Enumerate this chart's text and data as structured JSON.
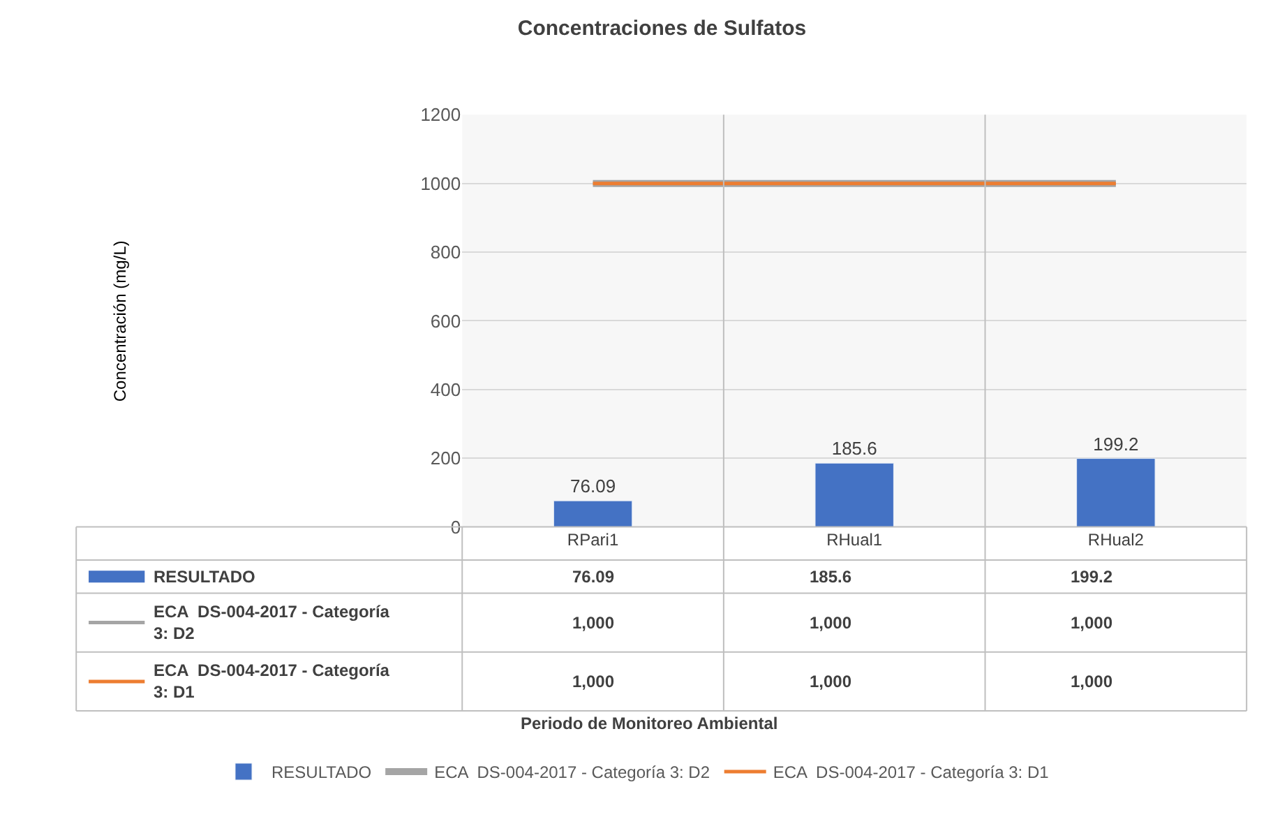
{
  "chart_data": {
    "type": "bar",
    "title": "Concentraciones de Sulfatos",
    "annotations": [
      "Periodo de Monitoreo Ambiental",
      "Concentración (mg/L)"
    ],
    "categories": [
      "RPari1",
      "RHual1",
      "RHual2"
    ],
    "series": [
      {
        "name": "RESULTADO",
        "color": "#4472c4",
        "values": [
          76.09,
          185.6,
          199.2
        ],
        "value_labels": [
          "76.09",
          "185.6",
          "199.2"
        ]
      },
      {
        "name": "ECA  DS-004-2017 - Categoría 3: D2",
        "type": "line",
        "color": "#a5a5a5",
        "values": [
          1000,
          1000,
          1000
        ],
        "value_labels": [
          "1,000",
          "1,000",
          "1,000"
        ]
      },
      {
        "name": "ECA  DS-004-2017 - Categoría 3: D1",
        "type": "line",
        "color": "#ed7d31",
        "values": [
          1000,
          1000,
          1000
        ],
        "value_labels": [
          "1,000",
          "1,000",
          "1,000"
        ]
      }
    ],
    "ylim": [
      0,
      1200
    ],
    "yticks": [
      0,
      200,
      400,
      600,
      800,
      1000,
      1200
    ],
    "grid": "y",
    "legend": "bottom",
    "marker": "none"
  }
}
